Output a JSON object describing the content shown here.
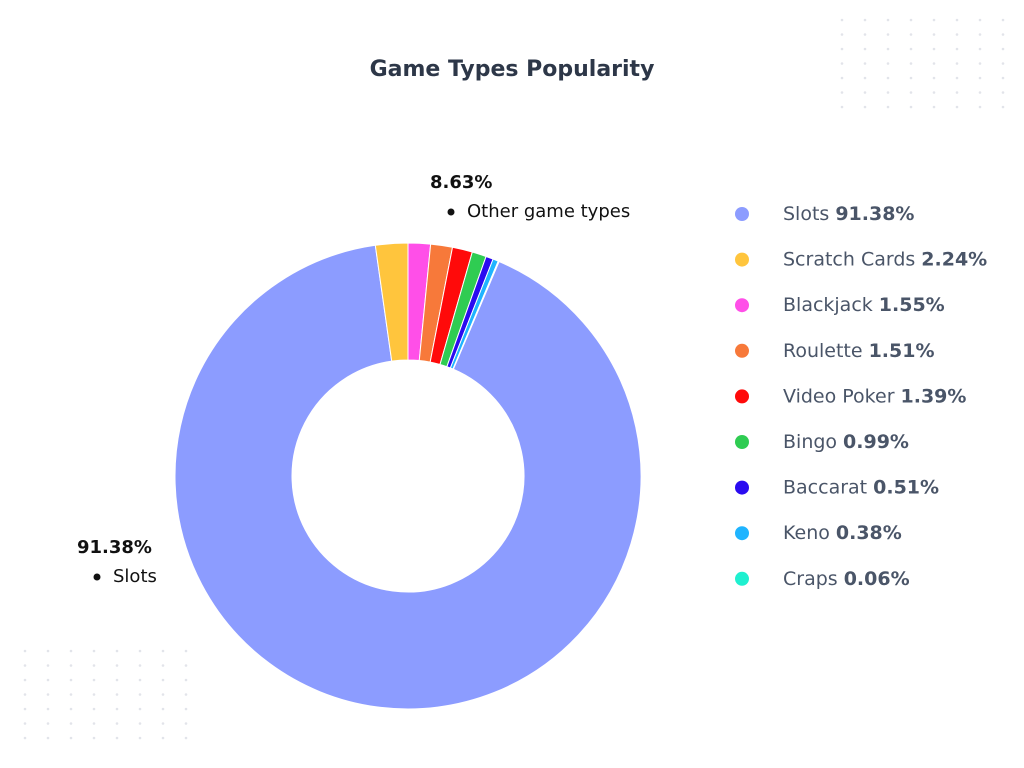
{
  "chart_data": {
    "type": "donut",
    "title": "Game Types Popularity",
    "categories": [
      "Slots",
      "Scratch Cards",
      "Blackjack",
      "Roulette",
      "Video Poker",
      "Bingo",
      "Baccarat",
      "Keno",
      "Craps"
    ],
    "values": [
      91.38,
      2.24,
      1.55,
      1.51,
      1.39,
      0.99,
      0.51,
      0.38,
      0.06
    ],
    "value_labels": [
      "91.38%",
      "2.24%",
      "1.55%",
      "1.51%",
      "1.39%",
      "0.99%",
      "0.51%",
      "0.38%",
      "0.06%"
    ],
    "colors": [
      "#8c9cff",
      "#ffc53d",
      "#ff4fe8",
      "#f7793a",
      "#ff0a0a",
      "#2fcc52",
      "#2a0bf0",
      "#1fb4ff",
      "#1ff0d0"
    ],
    "annotations": [
      {
        "value": 8.63,
        "value_label": "8.63%",
        "label": "Other game types"
      },
      {
        "value": 91.38,
        "value_label": "91.38%",
        "label": "Slots"
      }
    ],
    "legend": "right"
  }
}
